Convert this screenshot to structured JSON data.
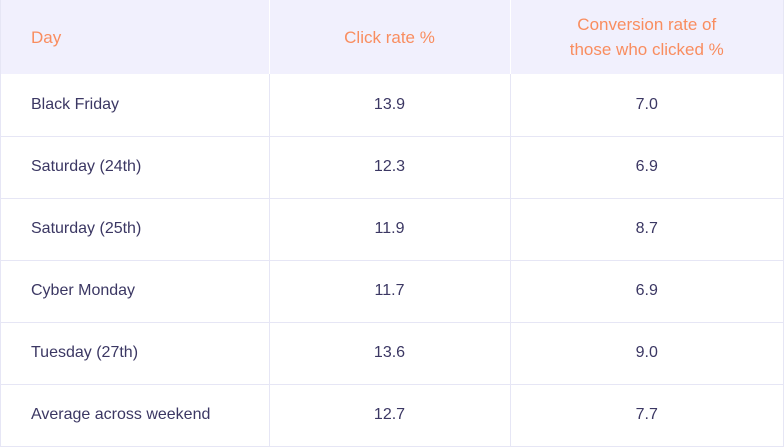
{
  "chart_data": {
    "type": "table",
    "columns": [
      "Day",
      "Click rate %",
      "Conversion rate of those who clicked %"
    ],
    "header_lines": {
      "day": "Day",
      "click_rate": "Click rate %",
      "conversion_line1": "Conversion rate of",
      "conversion_line2": "those who clicked %"
    },
    "rows": [
      {
        "day": "Black Friday",
        "click_rate": "13.9",
        "conversion_rate": "7.0"
      },
      {
        "day": "Saturday (24th)",
        "click_rate": "12.3",
        "conversion_rate": "6.9"
      },
      {
        "day": "Saturday (25th)",
        "click_rate": "11.9",
        "conversion_rate": "8.7"
      },
      {
        "day": "Cyber Monday",
        "click_rate": "11.7",
        "conversion_rate": "6.9"
      },
      {
        "day": "Tuesday (27th)",
        "click_rate": "13.6",
        "conversion_rate": "9.0"
      },
      {
        "day": "Average across weekend",
        "click_rate": "12.7",
        "conversion_rate": "7.7"
      }
    ]
  },
  "colors": {
    "header_background": "#f1f0fd",
    "header_text": "#f98d5f",
    "body_text": "#3b3763",
    "grid_line": "#e6e6f5"
  }
}
